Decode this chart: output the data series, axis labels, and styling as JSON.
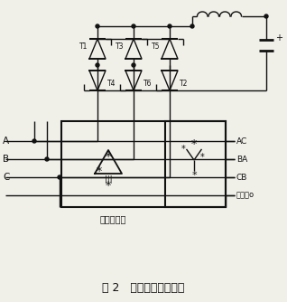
{
  "title": "图 2   相控整流部分电路",
  "subtitle_transformer": "同步变压器",
  "label_A": "A",
  "label_B": "B",
  "label_C": "C",
  "label_AC": "AC",
  "label_BA": "BA",
  "label_CB": "CB",
  "label_neutral": "中性点o",
  "label_plus": "+",
  "labels_top": [
    "T1",
    "T3",
    "T5"
  ],
  "labels_bot": [
    "T4",
    "T6",
    "T2"
  ],
  "bg_color": "#f0efe8",
  "line_color": "#111111"
}
